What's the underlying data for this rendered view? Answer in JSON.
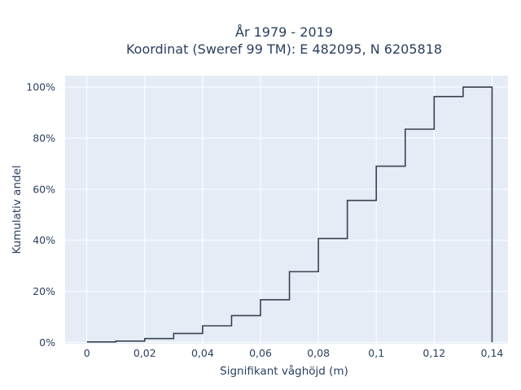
{
  "chart_data": {
    "type": "line",
    "line_shape": "step",
    "title_lines": [
      "År 1979 - 2019",
      "Koordinat (Sweref 99 TM): E 482095, N 6205818"
    ],
    "xlabel": "Signifikant våghöjd (m)",
    "ylabel": "Kumulativ andel",
    "x_ticks": [
      0,
      0.02,
      0.04,
      0.06,
      0.08,
      0.1,
      0.12,
      0.14
    ],
    "x_tick_labels": [
      "0",
      "0,02",
      "0,04",
      "0,06",
      "0,08",
      "0,1",
      "0,12",
      "0,14"
    ],
    "y_ticks": [
      0,
      20,
      40,
      60,
      80,
      100
    ],
    "y_tick_labels": [
      "0%",
      "20%",
      "40%",
      "60%",
      "80%",
      "100%"
    ],
    "xlim": [
      -0.0075,
      0.1455
    ],
    "ylim": [
      -0.5,
      104.5
    ],
    "grid": true,
    "series": [
      {
        "color": "#3a4150",
        "x": [
          0,
          0.01,
          0.02,
          0.03,
          0.04,
          0.05,
          0.06,
          0.07,
          0.08,
          0.09,
          0.1,
          0.11,
          0.12,
          0.13,
          0.14
        ],
        "y": [
          0.2,
          0.5,
          1.5,
          3.5,
          6.5,
          10.5,
          16.7,
          27.7,
          40.7,
          55.6,
          69.0,
          83.5,
          96.3,
          100.0,
          100.0
        ],
        "drop_to": 0
      }
    ],
    "plot_bg": "#e5ecf6",
    "grid_color": "#ffffff"
  }
}
